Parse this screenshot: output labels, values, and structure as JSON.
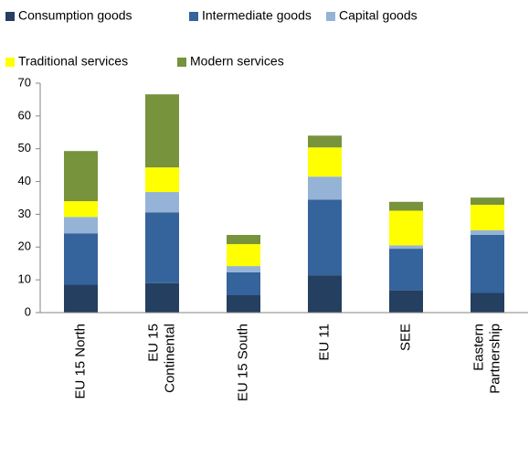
{
  "chart_data": {
    "type": "stacked_bar",
    "categories": [
      "EU 15 North",
      "EU 15\nContinental",
      "EU 15 South",
      "EU 11",
      "SEE",
      "Eastern\nPartnership"
    ],
    "series": [
      {
        "name": "Consumption goods",
        "color": "#243f60",
        "values": [
          8.5,
          9,
          5.3,
          11.4,
          6.8,
          6
        ]
      },
      {
        "name": "Intermediate goods",
        "color": "#35639b",
        "values": [
          15.7,
          21.6,
          7,
          23.1,
          12.7,
          17.7
        ]
      },
      {
        "name": "Capital goods",
        "color": "#95b3d7",
        "values": [
          5,
          6.2,
          1.9,
          7,
          1,
          1.4
        ]
      },
      {
        "name": "Traditional services",
        "color": "#ffff00",
        "values": [
          4.8,
          7.5,
          6.7,
          8.9,
          10.6,
          7.8
        ]
      },
      {
        "name": "Modern services",
        "color": "#77933c",
        "values": [
          15.3,
          22.3,
          2.8,
          3.6,
          2.7,
          2.2
        ]
      }
    ],
    "ylim": [
      0,
      70
    ],
    "yticks": [
      0,
      10,
      20,
      30,
      40,
      50,
      60,
      70
    ]
  }
}
